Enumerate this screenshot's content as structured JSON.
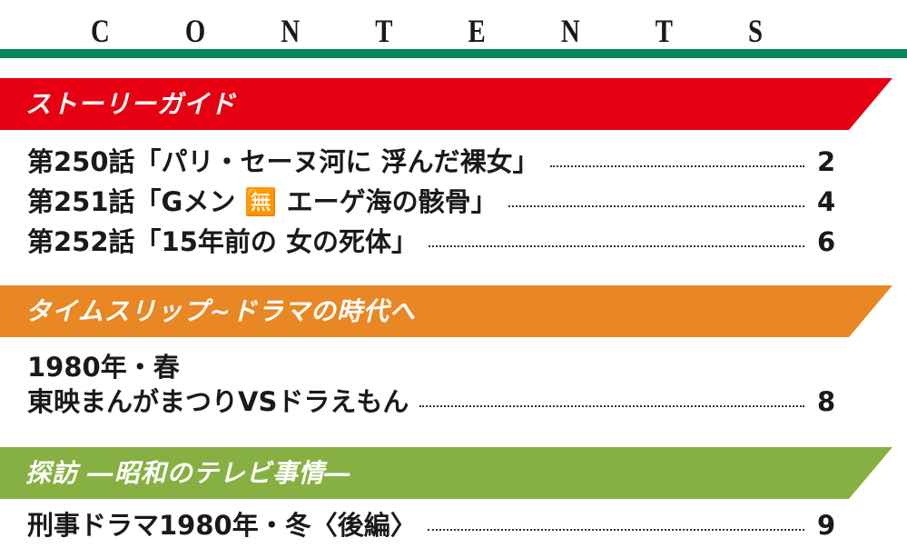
{
  "header": {
    "letters": [
      "C",
      "O",
      "N",
      "T",
      "E",
      "N",
      "T",
      "S"
    ],
    "rule_color": "#07855c"
  },
  "sections": [
    {
      "label": "ストーリーガイド",
      "color": "#e60012",
      "entries": [
        {
          "title": "第250話「パリ・セーヌ河に 浮んだ裸女」",
          "page": "2"
        },
        {
          "title": "第251話「Gメン 🈚 エーゲ海の骸骨」",
          "page": "4"
        },
        {
          "title": "第252話「15年前の 女の死体」",
          "page": "6"
        }
      ]
    },
    {
      "label": "タイムスリップ~ドラマの時代へ",
      "color": "#e98724",
      "entries": [
        {
          "line1": "1980年・春",
          "title": "東映まんがまつりVSドラえもん",
          "page": "8"
        }
      ]
    },
    {
      "label": "探訪 ―昭和のテレビ事情―",
      "color": "#87b043",
      "entries": [
        {
          "title": "刑事ドラマ1980年・冬〈後編〉",
          "page": "9"
        }
      ]
    }
  ]
}
